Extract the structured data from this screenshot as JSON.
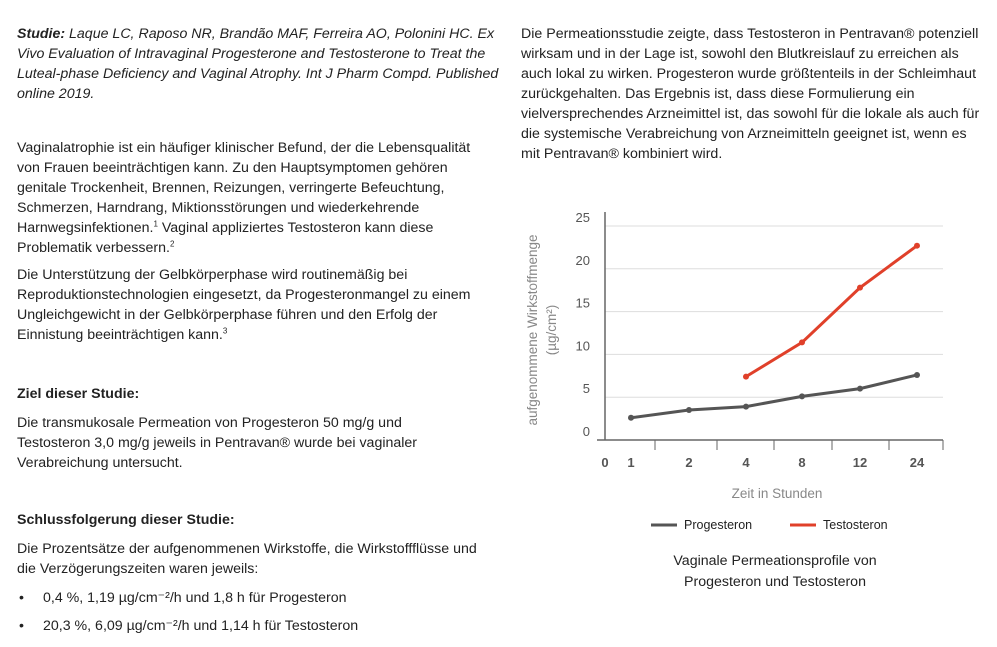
{
  "study": {
    "label": "Studie:",
    "citation": "Laque LC, Raposo NR, Brandão MAF, Ferreira AO, Polonini HC. Ex Vivo Evaluation of Intravaginal Progesterone and Testosterone to Treat the Luteal-phase Deficiency and Vaginal Atrophy. Int J Pharm Compd. Published online 2019."
  },
  "intro": {
    "p1a": "Vaginalatrophie ist ein häufiger klinischer Befund, der die Lebens­qualität von Frauen beeinträchtigen kann. Zu den Hauptsymptomen gehören genitale Trockenheit, Brennen, Reizungen, verringerte Be­feuchtung, Schmerzen, Harndrang, Miktionsstörungen und wiederkehrende Harnwegsinfektionen.",
    "p1a_ref": "1",
    "p1b": " Vaginal appliziertes Testosteron kann diese Problematik verbessern.",
    "p1b_ref": "2",
    "p2": "Die Unterstützung der Gelbkörperphase wird routinemäßig bei Reproduktionstechnologien eingesetzt, da Progesteronmangel zu einem Ungleichgewicht in der Gelbkörperphase führen und den Erfolg der Einnistung beeinträchtigen kann.",
    "p2_ref": "3"
  },
  "aim": {
    "heading": "Ziel dieser Studie:",
    "text": "Die transmukosale Permeation von Progesteron 50 mg/g und Testosteron 3,0 mg/g jeweils in Pentravan® wurde bei vaginaler Verabreichung untersucht."
  },
  "conclusion": {
    "heading": "Schlussfolgerung dieser Studie:",
    "text": "Die Prozentsätze der aufgenommenen Wirkstoffe, die Wirkstoffflüsse und die Verzögerungszeiten waren jeweils:",
    "bullets": [
      "0,4 %, 1,19 µg/cm⁻²/h und 1,8 h für Progesteron",
      "20,3 %, 6,09 µg/cm⁻²/h und 1,14 h für Testosteron"
    ]
  },
  "right_text": "Die Permeationsstudie zeigte, dass Testosteron in Pentravan® potenziell wirksam und in der Lage ist, sowohl den Blutkreislauf zu erreichen als auch lokal zu wirken. Progesteron wurde größtenteils in der Schleimhaut zurückgehalten. Das Ergebnis ist, dass diese Formulierung ein vielversprechendes Arzneimittel ist, das sowohl für die lokale als auch für die systemische Verabreichung von Arzneimitteln geeignet ist, wenn es mit Pentravan® kombiniert wird.",
  "caption": "Vaginale Permeationsprofile von Progesteron und Testosteron",
  "chart_data": {
    "type": "line",
    "xlabel": "Zeit in Stunden",
    "ylabel": "aufgenommene Wirkstoffmenge",
    "ylabel_unit": "(µg/cm²)",
    "x_tick_labels": [
      "0",
      "1",
      "2",
      "4",
      "8",
      "12",
      "24"
    ],
    "y_ticks": [
      0,
      5,
      10,
      15,
      20,
      25
    ],
    "ylim": [
      0,
      25
    ],
    "grid": "horizontal",
    "legend_position": "bottom",
    "series": [
      {
        "name": "Progesteron",
        "color": "#555555",
        "x": [
          "1",
          "2",
          "4",
          "8",
          "12",
          "24"
        ],
        "values": [
          2.6,
          3.5,
          3.9,
          5.1,
          6.0,
          7.6
        ]
      },
      {
        "name": "Testosteron",
        "color": "#e0402a",
        "x": [
          "4",
          "8",
          "12",
          "24"
        ],
        "values": [
          7.4,
          11.4,
          17.8,
          22.7
        ]
      }
    ]
  }
}
